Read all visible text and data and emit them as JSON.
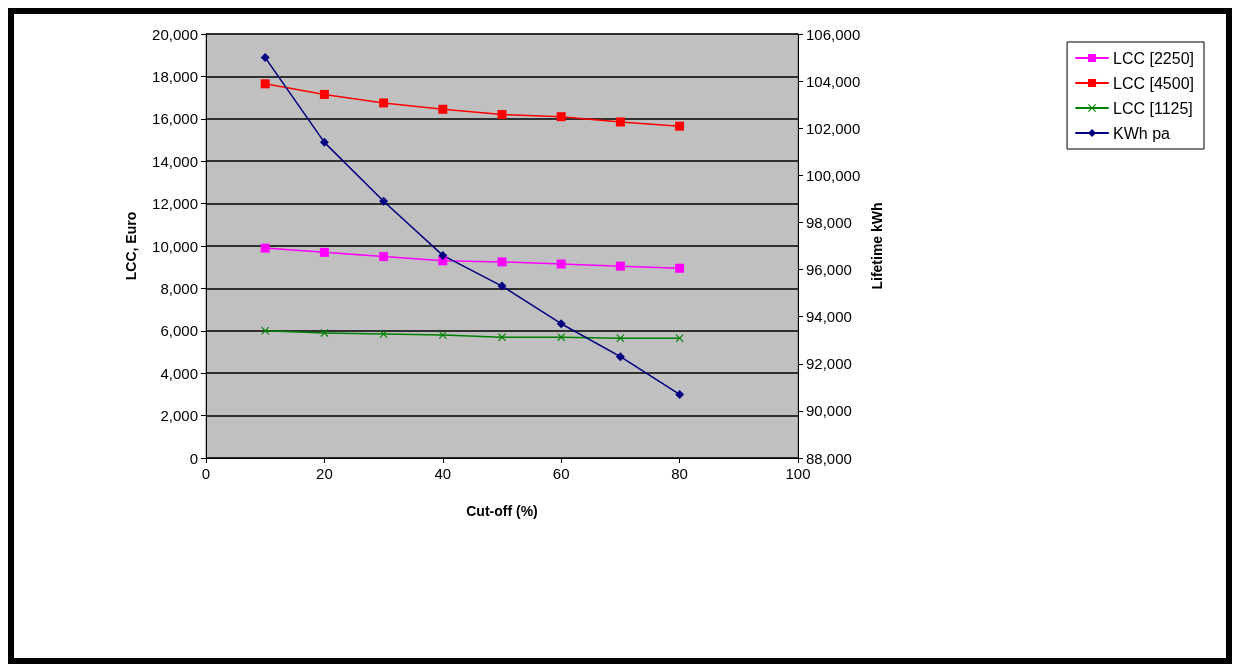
{
  "chart_data": {
    "type": "line",
    "xlabel": "Cut-off (%)",
    "ylabel": "LCC, Euro",
    "y2label": "Lifetime kWh",
    "x": [
      10,
      20,
      30,
      40,
      50,
      60,
      70,
      80
    ],
    "xlim": [
      0,
      100
    ],
    "xticks": [
      0,
      20,
      40,
      60,
      80,
      100
    ],
    "ylim": [
      0,
      20000
    ],
    "yticks": [
      0,
      {
        "value": 2000,
        "label": "2,000"
      },
      {
        "value": 4000,
        "label": "4,000"
      },
      {
        "value": 6000,
        "label": "6,000"
      },
      {
        "value": 8000,
        "label": "8,000"
      },
      {
        "value": 10000,
        "label": "10,000"
      },
      {
        "value": 12000,
        "label": "12,000"
      },
      {
        "value": 14000,
        "label": "14,000"
      },
      {
        "value": 16000,
        "label": "16,000"
      },
      {
        "value": 18000,
        "label": "18,000"
      },
      {
        "value": 20000,
        "label": "20,000"
      }
    ],
    "y2lim": [
      88000,
      106000
    ],
    "y2ticks": [
      {
        "value": 88000,
        "label": "88,000"
      },
      {
        "value": 90000,
        "label": "90,000"
      },
      {
        "value": 92000,
        "label": "92,000"
      },
      {
        "value": 94000,
        "label": "94,000"
      },
      {
        "value": 96000,
        "label": "96,000"
      },
      {
        "value": 98000,
        "label": "98,000"
      },
      {
        "value": 100000,
        "label": "100,000"
      },
      {
        "value": 102000,
        "label": "102,000"
      },
      {
        "value": 104000,
        "label": "104,000"
      },
      {
        "value": 106000,
        "label": "106,000"
      }
    ],
    "grid": "y",
    "legend": "right",
    "line_style": "solid",
    "series": [
      {
        "name": "LCC [2250]",
        "color": "#ff00ff",
        "marker": "square",
        "values": [
          9900,
          9700,
          9500,
          9300,
          9250,
          9150,
          9050,
          8950
        ]
      },
      {
        "name": "LCC [4500]",
        "color": "#ff0000",
        "marker": "square",
        "values": [
          17650,
          17150,
          16750,
          16450,
          16200,
          16100,
          15850,
          15650
        ]
      },
      {
        "name": "LCC [1125]",
        "color": "#008000",
        "marker": "cross",
        "values": [
          6000,
          5900,
          5850,
          5800,
          5700,
          5700,
          5650,
          5650
        ]
      },
      {
        "name": "KWh pa",
        "color": "#000080",
        "marker": "diamond",
        "axis": "y2",
        "values": [
          105000,
          101400,
          98900,
          96600,
          95300,
          93700,
          92300,
          90700
        ]
      }
    ]
  }
}
